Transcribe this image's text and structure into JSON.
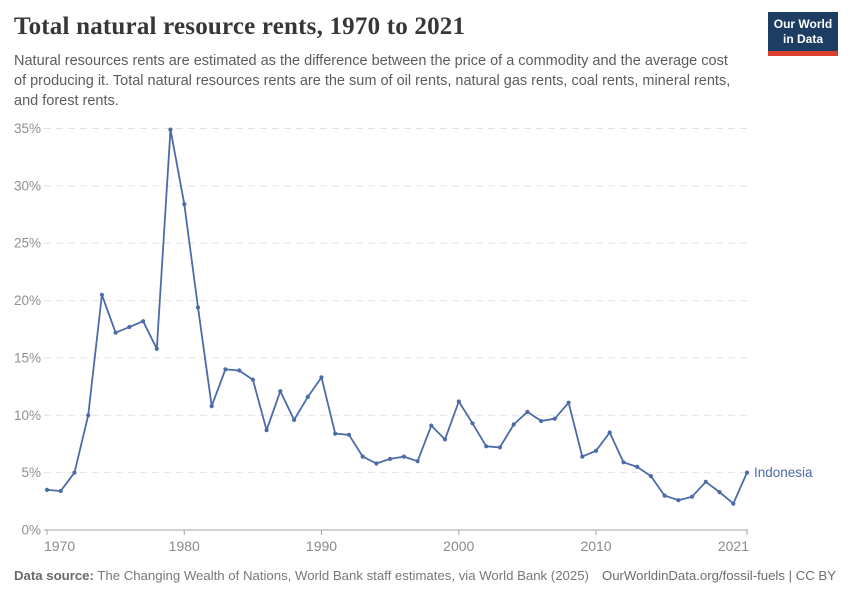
{
  "header": {
    "title": "Total natural resource rents, 1970 to 2021",
    "subtitle": "Natural resources rents are estimated as the difference between the price of a commodity and the average cost of producing it. Total natural resources rents are the sum of oil rents, natural gas rents, coal rents, mineral rents, and forest rents.",
    "logo": {
      "line1": "Our World",
      "line2": "in Data",
      "bg_color": "#1d3d63",
      "accent_color": "#dc3f2e"
    }
  },
  "chart_data": {
    "type": "line",
    "title": "Total natural resource rents, 1970 to 2021",
    "entity": "Indonesia",
    "line_color": "#4c6ba9",
    "markers": true,
    "grid": "horizontal-dashed",
    "legend_position": "end-of-line-label",
    "xlabel": "",
    "ylabel": "",
    "ylim": [
      0,
      35
    ],
    "yticks": [
      0,
      5,
      10,
      15,
      20,
      25,
      30,
      35
    ],
    "ytick_suffix": "%",
    "xticks": [
      1970,
      1980,
      1990,
      2000,
      2010,
      2021
    ],
    "x": [
      1970,
      1971,
      1972,
      1973,
      1974,
      1975,
      1976,
      1977,
      1978,
      1979,
      1980,
      1981,
      1982,
      1983,
      1984,
      1985,
      1986,
      1987,
      1988,
      1989,
      1990,
      1991,
      1992,
      1993,
      1994,
      1995,
      1996,
      1997,
      1998,
      1999,
      2000,
      2001,
      2002,
      2003,
      2004,
      2005,
      2006,
      2007,
      2008,
      2009,
      2010,
      2011,
      2012,
      2013,
      2014,
      2015,
      2016,
      2017,
      2018,
      2019,
      2020,
      2021
    ],
    "values": [
      3.5,
      3.4,
      5.0,
      10.0,
      20.5,
      17.2,
      17.7,
      18.2,
      15.8,
      34.9,
      28.4,
      19.4,
      10.8,
      14.0,
      13.9,
      13.1,
      8.7,
      12.1,
      9.6,
      11.6,
      13.3,
      8.4,
      8.3,
      6.4,
      5.8,
      6.2,
      6.4,
      6.0,
      9.1,
      7.9,
      11.2,
      9.3,
      7.3,
      7.2,
      9.2,
      10.3,
      9.5,
      9.7,
      11.1,
      6.4,
      6.9,
      8.5,
      5.9,
      5.5,
      4.7,
      3.0,
      2.6,
      2.9,
      4.2,
      3.3,
      2.3,
      5.0
    ]
  },
  "footer": {
    "datasource_label": "Data source:",
    "datasource_text": " The Changing Wealth of Nations, World Bank staff estimates, via World Bank (2025)",
    "rights": "OurWorldinData.org/fossil-fuels | CC BY"
  }
}
